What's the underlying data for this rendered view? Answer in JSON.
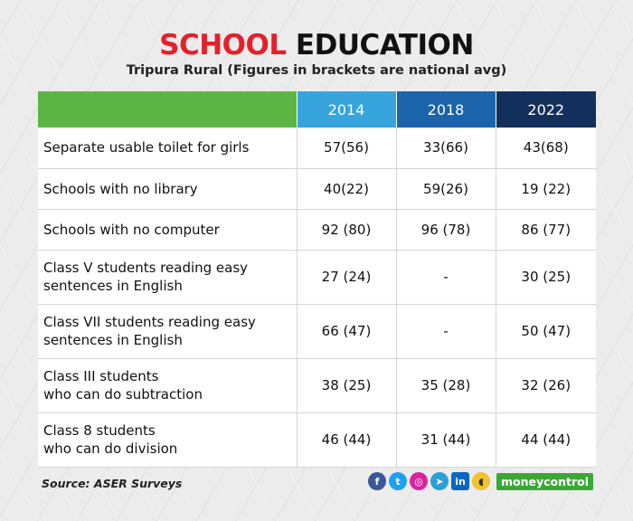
{
  "title": {
    "part1": "SCHOOL",
    "part2": " EDUCATION"
  },
  "subtitle": "Tripura Rural (Figures in brackets are national avg)",
  "table": {
    "headers": [
      "",
      "2014",
      "2018",
      "2022"
    ],
    "rows": [
      {
        "label_lines": [
          "Separate usable toilet for girls",
          ""
        ],
        "values": [
          "57(56)",
          "33(66)",
          "43(68)"
        ]
      },
      {
        "label_lines": [
          "Schools with no library",
          ""
        ],
        "values": [
          "40(22)",
          "59(26)",
          "19 (22)"
        ]
      },
      {
        "label_lines": [
          "Schools with no computer",
          ""
        ],
        "values": [
          "92 (80)",
          "96 (78)",
          "86 (77)"
        ]
      },
      {
        "label_lines": [
          "Class V students reading easy",
          "sentences in English"
        ],
        "values": [
          "27 (24)",
          "-",
          "30 (25)"
        ]
      },
      {
        "label_lines": [
          "Class VII students reading easy",
          "sentences in English"
        ],
        "values": [
          "66 (47)",
          "-",
          "50 (47)"
        ]
      },
      {
        "label_lines": [
          "Class III students",
          "who can do subtraction"
        ],
        "values": [
          "38 (25)",
          "35 (28)",
          "32 (26)"
        ]
      },
      {
        "label_lines": [
          "Class 8 students",
          "who can do division"
        ],
        "values": [
          "46 (44)",
          "31 (44)",
          "44 (44)"
        ]
      }
    ]
  },
  "source": "Source: ASER Surveys",
  "social": {
    "facebook": "f",
    "twitter": "t",
    "instagram": "◎",
    "telegram": "➤",
    "linkedin": "in",
    "koo": "◖",
    "brand": "moneycontrol"
  },
  "colors": {
    "header_label": "#5db546",
    "header_2014": "#37a4de",
    "header_2018": "#1b63ab",
    "header_2022": "#13305c",
    "title_accent": "#e4202b",
    "brand": "#39a935"
  }
}
